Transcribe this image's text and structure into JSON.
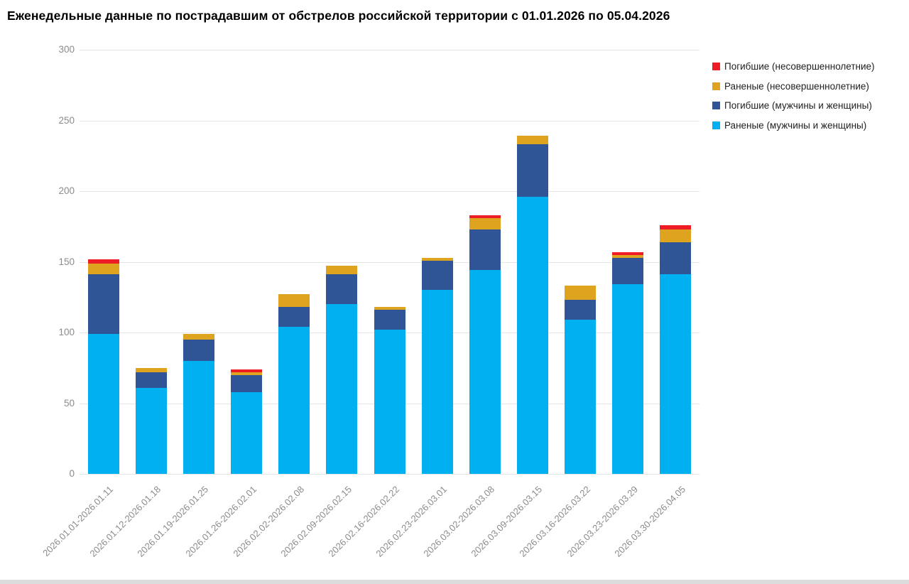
{
  "chart_data": {
    "type": "bar",
    "stacked": true,
    "title": "Еженедельные данные по пострадавшим от обстрелов российской территории с 01.01.2026 по 05.04.2026",
    "categories": [
      "2026.01.01-2026.01.11",
      "2026.01.12-2026.01.18",
      "2026.01.19-2026.01.25",
      "2026.01.26-2026.02.01",
      "2026.02.02-2026.02.08",
      "2026.02.09-2026.02.15",
      "2026.02.16-2026.02.22",
      "2026.02.23-2026.03.01",
      "2026.03.02-2026.03.08",
      "2026.03.09-2026.03.15",
      "2026.03.16-2026.03.22",
      "2026.03.23-2026.03.29",
      "2026.03.30-2026.04.05"
    ],
    "series": [
      {
        "name": "Раненые (мужчины и женщины)",
        "color": "#00b0f0",
        "values": [
          99,
          61,
          80,
          58,
          104,
          120,
          102,
          130,
          144,
          196,
          109,
          134,
          141
        ]
      },
      {
        "name": "Погибшие (мужчины и женщины)",
        "color": "#2f5597",
        "values": [
          42,
          11,
          15,
          12,
          14,
          21,
          14,
          21,
          29,
          37,
          14,
          19,
          23
        ]
      },
      {
        "name": "Раненые (несовершеннолетние)",
        "color": "#dfa41f",
        "values": [
          8,
          3,
          4,
          2,
          9,
          6,
          2,
          2,
          8,
          6,
          10,
          2,
          9
        ]
      },
      {
        "name": "Погибшие (несовершеннолетние)",
        "color": "#ee1c25",
        "values": [
          3,
          0,
          0,
          2,
          0,
          0,
          0,
          0,
          2,
          0,
          0,
          2,
          3
        ]
      }
    ],
    "stack_totals": [
      152,
      75,
      99,
      74,
      127,
      147,
      118,
      153,
      183,
      239,
      133,
      157,
      176
    ],
    "stack_order": "bottom-to-top",
    "xlabel": "",
    "ylabel": "",
    "ylim": [
      0,
      300
    ],
    "yticks": [
      0,
      50,
      100,
      150,
      200,
      250,
      300
    ],
    "grid": "horizontal",
    "legend_position": "top-right",
    "legend_order_top_to_bottom": [
      "Погибшие (несовершеннолетние)",
      "Раненые (несовершеннолетние)",
      "Погибшие (мужчины и женщины)",
      "Раненые (мужчины и женщины)"
    ]
  },
  "style_colors": {
    "background": "#ffffff",
    "gridline": "#e5e5e5",
    "tick_label": "#8b8b8b",
    "title_text": "#000000",
    "legend_text": "#1f1f1f",
    "window_bottom_edge": "#dcdcdc"
  }
}
